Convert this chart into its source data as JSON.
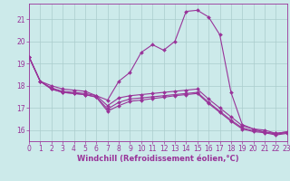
{
  "background_color": "#cceaea",
  "line_color": "#993399",
  "grid_color": "#aacccc",
  "xlim": [
    0,
    23
  ],
  "ylim": [
    15.5,
    21.7
  ],
  "yticks": [
    16,
    17,
    18,
    19,
    20,
    21
  ],
  "xticks": [
    0,
    1,
    2,
    3,
    4,
    5,
    6,
    7,
    8,
    9,
    10,
    11,
    12,
    13,
    14,
    15,
    16,
    17,
    18,
    19,
    20,
    21,
    22,
    23
  ],
  "curve1_y": [
    19.3,
    18.2,
    18.0,
    17.85,
    17.8,
    17.75,
    17.55,
    17.35,
    18.2,
    18.6,
    19.5,
    19.85,
    19.6,
    20.0,
    21.35,
    21.4,
    21.1,
    20.3,
    17.7,
    16.25,
    16.05,
    15.9,
    15.85,
    15.92
  ],
  "curve2_y": [
    19.3,
    18.2,
    17.9,
    17.75,
    17.7,
    17.65,
    17.55,
    17.1,
    17.45,
    17.55,
    17.6,
    17.65,
    17.7,
    17.75,
    17.8,
    17.85,
    17.4,
    17.0,
    16.6,
    16.2,
    16.05,
    16.0,
    15.85,
    15.92
  ],
  "curve3_y": [
    19.3,
    18.2,
    17.85,
    17.7,
    17.65,
    17.6,
    17.5,
    16.95,
    17.25,
    17.4,
    17.45,
    17.5,
    17.55,
    17.6,
    17.65,
    17.7,
    17.25,
    16.85,
    16.45,
    16.1,
    15.97,
    15.92,
    15.82,
    15.88
  ],
  "curve4_y": [
    19.3,
    18.2,
    17.85,
    17.7,
    17.65,
    17.6,
    17.48,
    16.85,
    17.1,
    17.3,
    17.35,
    17.42,
    17.48,
    17.55,
    17.6,
    17.65,
    17.2,
    16.8,
    16.4,
    16.05,
    15.93,
    15.88,
    15.78,
    15.85
  ],
  "marker": "D",
  "marker_size": 2.0,
  "linewidth": 0.8,
  "tick_fontsize": 5.5,
  "xlabel": "Windchill (Refroidissement éolien,°C)",
  "xlabel_fontsize": 6.0
}
